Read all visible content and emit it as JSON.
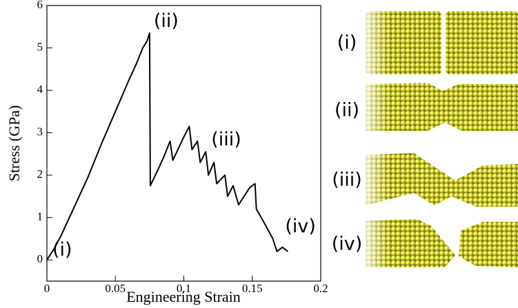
{
  "chart_data": {
    "type": "line",
    "xlabel": "Engineering Strain",
    "ylabel": "Stress (GPa)",
    "x": [
      0,
      0.005,
      0.01,
      0.02,
      0.03,
      0.04,
      0.05,
      0.06,
      0.065,
      0.07,
      0.073,
      0.075,
      0.0755,
      0.08,
      0.085,
      0.09,
      0.092,
      0.1,
      0.104,
      0.106,
      0.11,
      0.112,
      0.116,
      0.118,
      0.122,
      0.124,
      0.13,
      0.132,
      0.136,
      0.14,
      0.148,
      0.152,
      0.153,
      0.16,
      0.165,
      0.168,
      0.172,
      0.176
    ],
    "values": [
      0,
      0.25,
      0.55,
      1.25,
      1.95,
      2.75,
      3.5,
      4.25,
      4.6,
      5.0,
      5.15,
      5.35,
      1.75,
      2.05,
      2.4,
      2.8,
      2.35,
      2.9,
      3.15,
      2.6,
      2.8,
      2.3,
      2.55,
      2.0,
      2.3,
      1.8,
      2.0,
      1.5,
      1.75,
      1.3,
      1.7,
      1.8,
      1.2,
      0.8,
      0.5,
      0.2,
      0.3,
      0.2
    ],
    "color": "#000000",
    "xlim": [
      0,
      0.2
    ],
    "ylim": [
      -0.5,
      6
    ],
    "xticks": [
      0,
      0.05,
      0.1,
      0.15,
      0.2
    ],
    "yticks": [
      0,
      1,
      2,
      3,
      4,
      5,
      6
    ],
    "annotations": [
      {
        "text": "(i)",
        "x": 0.004,
        "y": 0.1
      },
      {
        "text": "(ii)",
        "x": 0.078,
        "y": 5.5
      },
      {
        "text": "(iii)",
        "x": 0.12,
        "y": 2.7
      },
      {
        "text": "(iv)",
        "x": 0.174,
        "y": 0.65
      }
    ]
  },
  "panels": [
    "(i)",
    "(ii)",
    "(iii)",
    "(iv)"
  ]
}
